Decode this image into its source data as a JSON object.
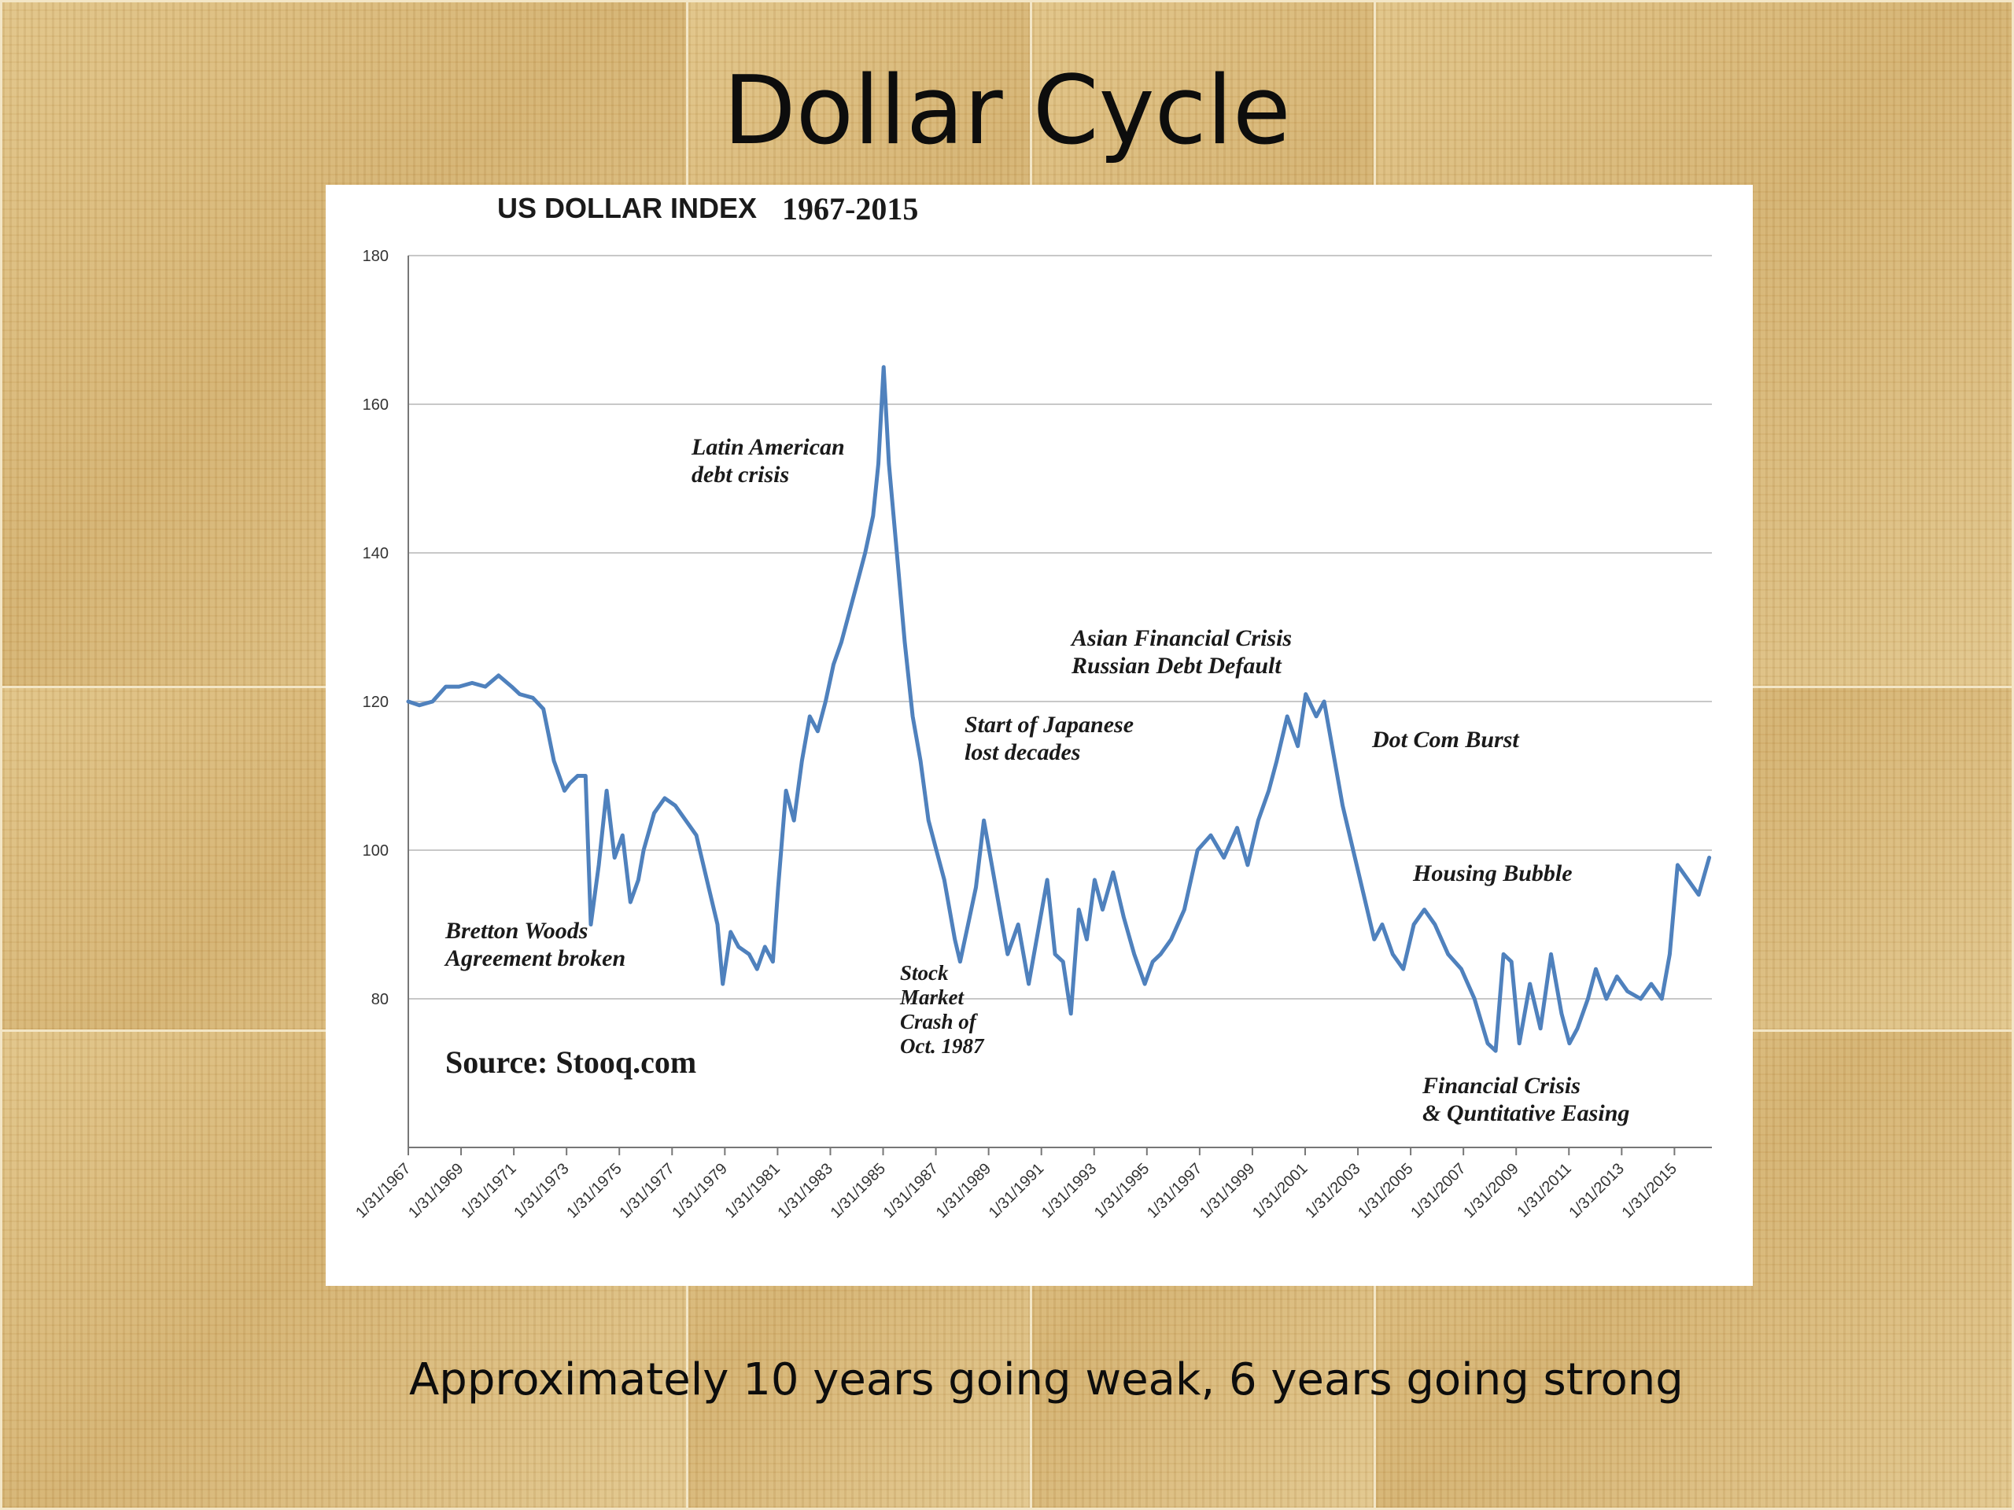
{
  "slide": {
    "title": "Dollar Cycle",
    "caption": "Approximately 10 years going weak, 6 years going strong"
  },
  "colors": {
    "line": "#4f81bd",
    "grid": "#c8c8c8",
    "text": "#1a1a1a"
  },
  "chart_data": {
    "type": "line",
    "title": "US DOLLAR INDEX",
    "title_years": "1967-2015",
    "xlabel": "",
    "ylabel": "",
    "ylim": [
      60,
      180
    ],
    "xlim": [
      1967.08,
      2016.5
    ],
    "grid": true,
    "legend": "none",
    "y_ticks": [
      80,
      100,
      120,
      140,
      160,
      180
    ],
    "x_tick_labels": [
      "1/31/1967",
      "1/31/1969",
      "1/31/1971",
      "1/31/1973",
      "1/31/1975",
      "1/31/1977",
      "1/31/1979",
      "1/31/1981",
      "1/31/1983",
      "1/31/1985",
      "1/31/1987",
      "1/31/1989",
      "1/31/1991",
      "1/31/1993",
      "1/31/1995",
      "1/31/1997",
      "1/31/1999",
      "1/31/2001",
      "1/31/2003",
      "1/31/2005",
      "1/31/2007",
      "1/31/2009",
      "1/31/2011",
      "1/31/2013",
      "1/31/2015"
    ],
    "x_tick_years": [
      1967.08,
      1969.08,
      1971.08,
      1973.08,
      1975.08,
      1977.08,
      1979.08,
      1981.08,
      1983.08,
      1985.08,
      1987.08,
      1989.08,
      1991.08,
      1993.08,
      1995.08,
      1997.08,
      1999.08,
      2001.08,
      2003.08,
      2005.08,
      2007.08,
      2009.08,
      2011.08,
      2013.08,
      2015.08
    ],
    "source": "Source: Stooq.com",
    "series": [
      {
        "name": "",
        "x": [
          1967.08,
          1967.5,
          1968.0,
          1968.5,
          1969.0,
          1969.5,
          1970.0,
          1970.5,
          1971.0,
          1971.3,
          1971.8,
          1972.2,
          1972.6,
          1973.0,
          1973.2,
          1973.5,
          1973.8,
          1974.0,
          1974.3,
          1974.6,
          1974.9,
          1975.2,
          1975.5,
          1975.8,
          1976.0,
          1976.4,
          1976.8,
          1977.2,
          1977.6,
          1978.0,
          1978.4,
          1978.8,
          1979.0,
          1979.3,
          1979.6,
          1980.0,
          1980.3,
          1980.6,
          1980.9,
          1981.1,
          1981.4,
          1981.7,
          1982.0,
          1982.3,
          1982.6,
          1982.9,
          1983.2,
          1983.5,
          1983.8,
          1984.1,
          1984.4,
          1984.7,
          1984.9,
          1985.1,
          1985.3,
          1985.6,
          1985.9,
          1986.2,
          1986.5,
          1986.8,
          1987.1,
          1987.4,
          1987.8,
          1988.0,
          1988.3,
          1988.6,
          1988.9,
          1989.2,
          1989.5,
          1989.8,
          1990.2,
          1990.6,
          1991.0,
          1991.3,
          1991.6,
          1991.9,
          1992.2,
          1992.5,
          1992.8,
          1993.1,
          1993.4,
          1993.8,
          1994.2,
          1994.6,
          1995.0,
          1995.3,
          1995.6,
          1996.0,
          1996.5,
          1997.0,
          1997.5,
          1998.0,
          1998.5,
          1998.9,
          1999.3,
          1999.7,
          2000.0,
          2000.4,
          2000.8,
          2001.1,
          2001.5,
          2001.8,
          2002.1,
          2002.5,
          2002.9,
          2003.3,
          2003.7,
          2004.0,
          2004.4,
          2004.8,
          2005.2,
          2005.6,
          2006.0,
          2006.5,
          2007.0,
          2007.5,
          2008.0,
          2008.3,
          2008.6,
          2008.9,
          2009.2,
          2009.6,
          2010.0,
          2010.4,
          2010.8,
          2011.1,
          2011.4,
          2011.8,
          2012.1,
          2012.5,
          2012.9,
          2013.3,
          2013.8,
          2014.2,
          2014.6,
          2014.9,
          2015.2,
          2015.6,
          2016.0,
          2016.4
        ],
        "values": [
          120,
          119.5,
          120,
          122,
          122,
          122.5,
          122,
          123.5,
          122,
          121,
          120.5,
          119,
          112,
          108,
          109,
          110,
          110,
          90,
          98,
          108,
          99,
          102,
          93,
          96,
          100,
          105,
          107,
          106,
          104,
          102,
          96,
          90,
          82,
          89,
          87,
          86,
          84,
          87,
          85,
          95,
          108,
          104,
          112,
          118,
          116,
          120,
          125,
          128,
          132,
          136,
          140,
          145,
          152,
          165,
          152,
          140,
          128,
          118,
          112,
          104,
          100,
          96,
          88,
          85,
          90,
          95,
          104,
          98,
          92,
          86,
          90,
          82,
          90,
          96,
          86,
          85,
          78,
          92,
          88,
          96,
          92,
          97,
          91,
          86,
          82,
          85,
          86,
          88,
          92,
          100,
          102,
          99,
          103,
          98,
          104,
          108,
          112,
          118,
          114,
          121,
          118,
          120,
          114,
          106,
          100,
          94,
          88,
          90,
          86,
          84,
          90,
          92,
          90,
          86,
          84,
          80,
          74,
          73,
          86,
          85,
          74,
          82,
          76,
          86,
          78,
          74,
          76,
          80,
          84,
          80,
          83,
          81,
          80,
          82,
          80,
          86,
          98,
          96,
          94,
          99
        ]
      }
    ],
    "annotations": [
      {
        "lines": [
          "Latin American",
          "debt crisis"
        ]
      },
      {
        "lines": [
          "Bretton Woods",
          "Agreement broken"
        ]
      },
      {
        "lines": [
          "Stock",
          "Market",
          "Crash of",
          "Oct. 1987"
        ]
      },
      {
        "lines": [
          "Start of Japanese",
          "lost decades"
        ]
      },
      {
        "lines": [
          "Asian Financial Crisis",
          "Russian Debt Default"
        ]
      },
      {
        "lines": [
          "Dot Com Burst"
        ]
      },
      {
        "lines": [
          "Housing Bubble"
        ]
      },
      {
        "lines": [
          "Financial Crisis",
          "& Quntitative Easing"
        ]
      }
    ]
  }
}
